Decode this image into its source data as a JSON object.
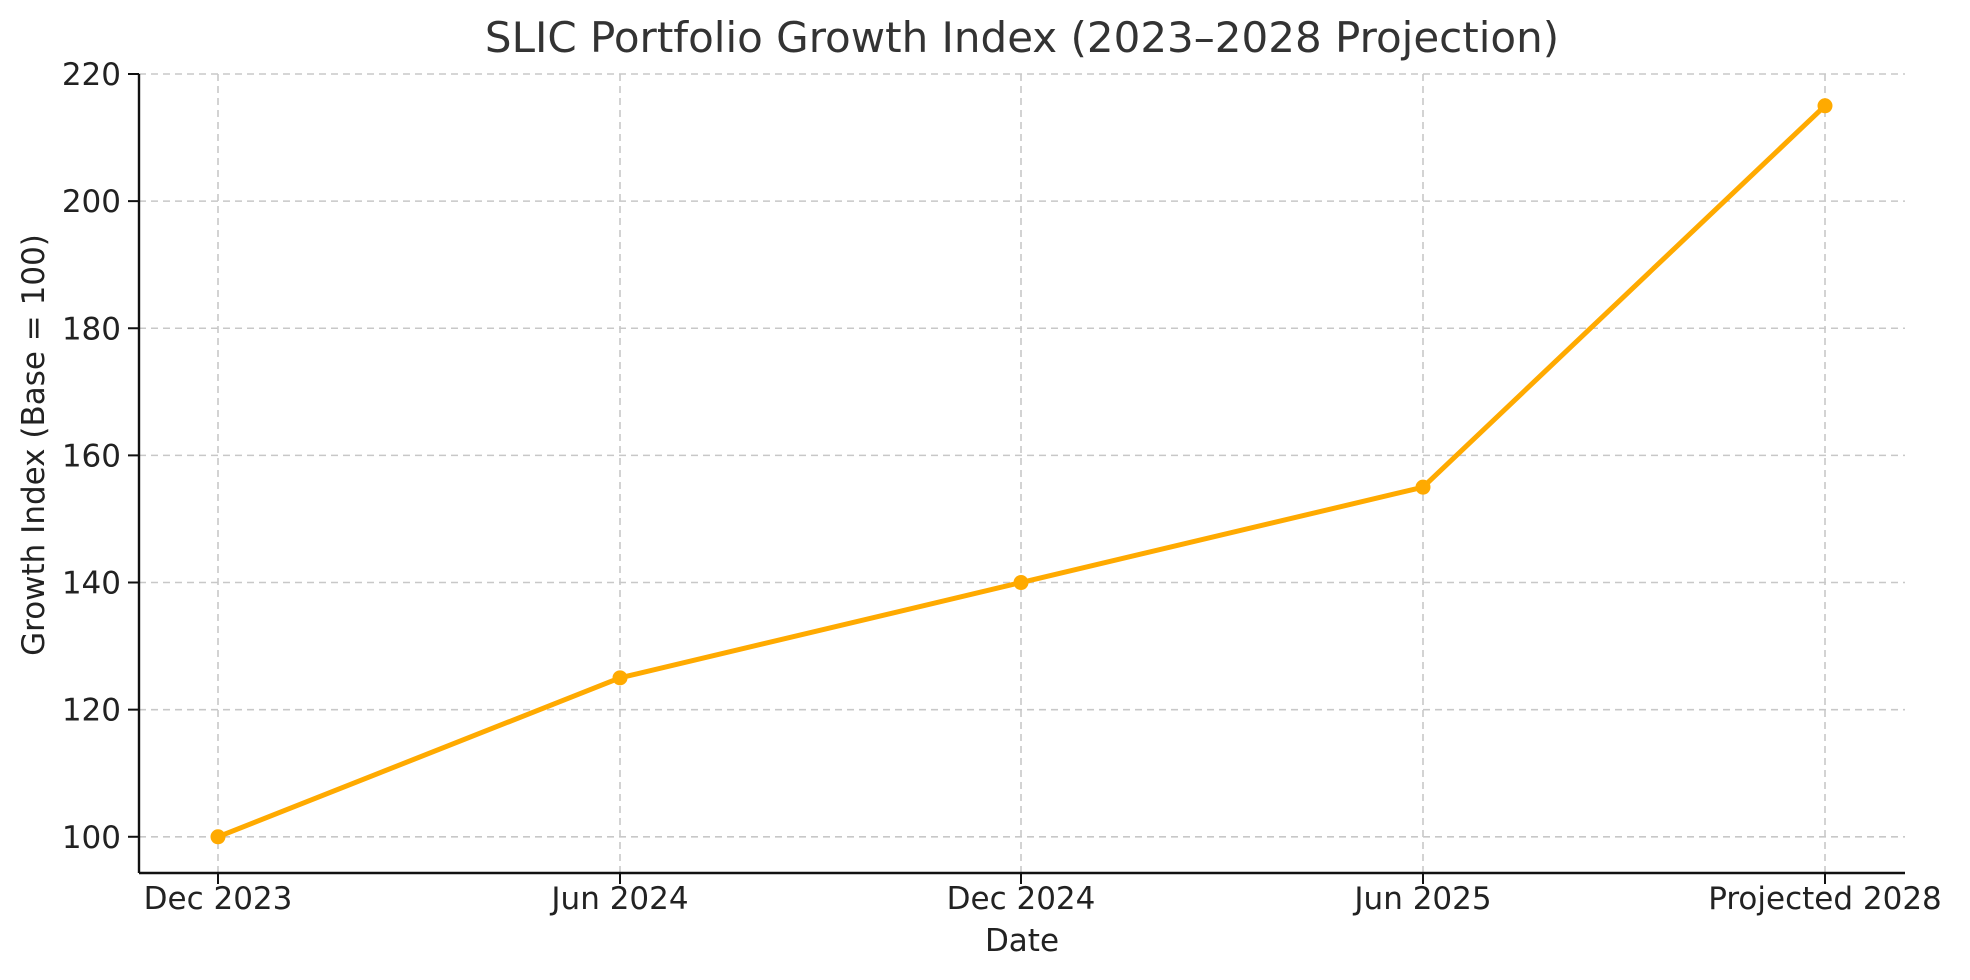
{
  "chart_data": {
    "type": "line",
    "title": "SLIC Portfolio Growth Index (2023–2028 Projection)",
    "xlabel": "Date",
    "ylabel": "Growth Index (Base = 100)",
    "categories": [
      "Dec 2023",
      "Jun 2024",
      "Dec 2024",
      "Jun 2025",
      "Projected 2028"
    ],
    "series": [
      {
        "name": "SLIC Portfolio Growth Index",
        "values": [
          100,
          125,
          140,
          155,
          215
        ],
        "color": "#FFAA00"
      }
    ],
    "ylim": [
      94.3,
      220
    ],
    "yticks": [
      100,
      120,
      140,
      160,
      180,
      200,
      220
    ],
    "grid": true,
    "legend": "none",
    "colors": {
      "line": "#FFAA00",
      "grid": "#C8C8C8",
      "axis": "#111111",
      "text": "#222222",
      "title": "#333333"
    }
  }
}
